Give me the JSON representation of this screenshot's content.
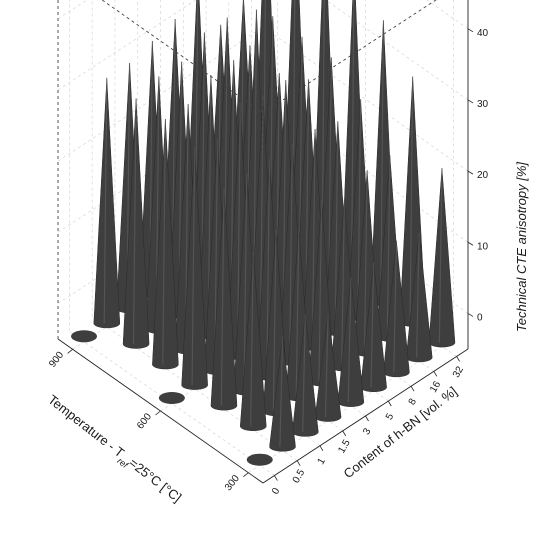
{
  "chart_data": {
    "type": "3d-cone",
    "title": "",
    "xlabel": "Temperature - T$_{ref}$=25°C [°C]",
    "xlabel_parts": [
      "Temperature - T",
      "ref",
      "=25°C [°C]"
    ],
    "ylabel": "Content of h-BN [vol. %]",
    "zlabel": "Technical CTE anisotropy [%]",
    "x_ticks": [
      "300",
      "600",
      "900"
    ],
    "y_ticks": [
      "0",
      "0.5",
      "1",
      "1.5",
      "3",
      "5",
      "8",
      "16",
      "32"
    ],
    "z_ticks": [
      "0",
      "10",
      "20",
      "30",
      "40"
    ],
    "zlim": [
      -5,
      47
    ],
    "grid": true,
    "cone_color": "#3e3e3e",
    "temperatures": [
      300,
      400,
      500,
      600,
      700,
      800,
      900
    ],
    "contents": [
      "0",
      "0.5",
      "1",
      "1.5",
      "3",
      "5",
      "8",
      "16",
      "32"
    ],
    "series": [
      {
        "content": "0",
        "values": [
          -1,
          null,
          null,
          -2,
          null,
          null,
          -2
        ]
      },
      {
        "content": "0.5",
        "values": [
          11,
          20,
          26,
          29,
          30,
          30,
          30
        ]
      },
      {
        "content": "1",
        "values": [
          12,
          21,
          26,
          28,
          30,
          31,
          30
        ]
      },
      {
        "content": "1.5",
        "values": [
          10,
          19,
          26,
          31,
          32,
          31,
          31
        ]
      },
      {
        "content": "3",
        "values": [
          13,
          21,
          26,
          30,
          32,
          33,
          32
        ]
      },
      {
        "content": "5",
        "values": [
          13,
          19,
          26,
          30,
          37,
          33,
          37
        ]
      },
      {
        "content": "8",
        "values": [
          14,
          21,
          25,
          28,
          26,
          27,
          27
        ]
      },
      {
        "content": "16",
        "values": [
          13,
          21,
          26,
          29,
          29,
          29,
          29
        ]
      },
      {
        "content": "32",
        "values": [
          20,
          30,
          35,
          40,
          43,
          43,
          43
        ]
      }
    ]
  }
}
